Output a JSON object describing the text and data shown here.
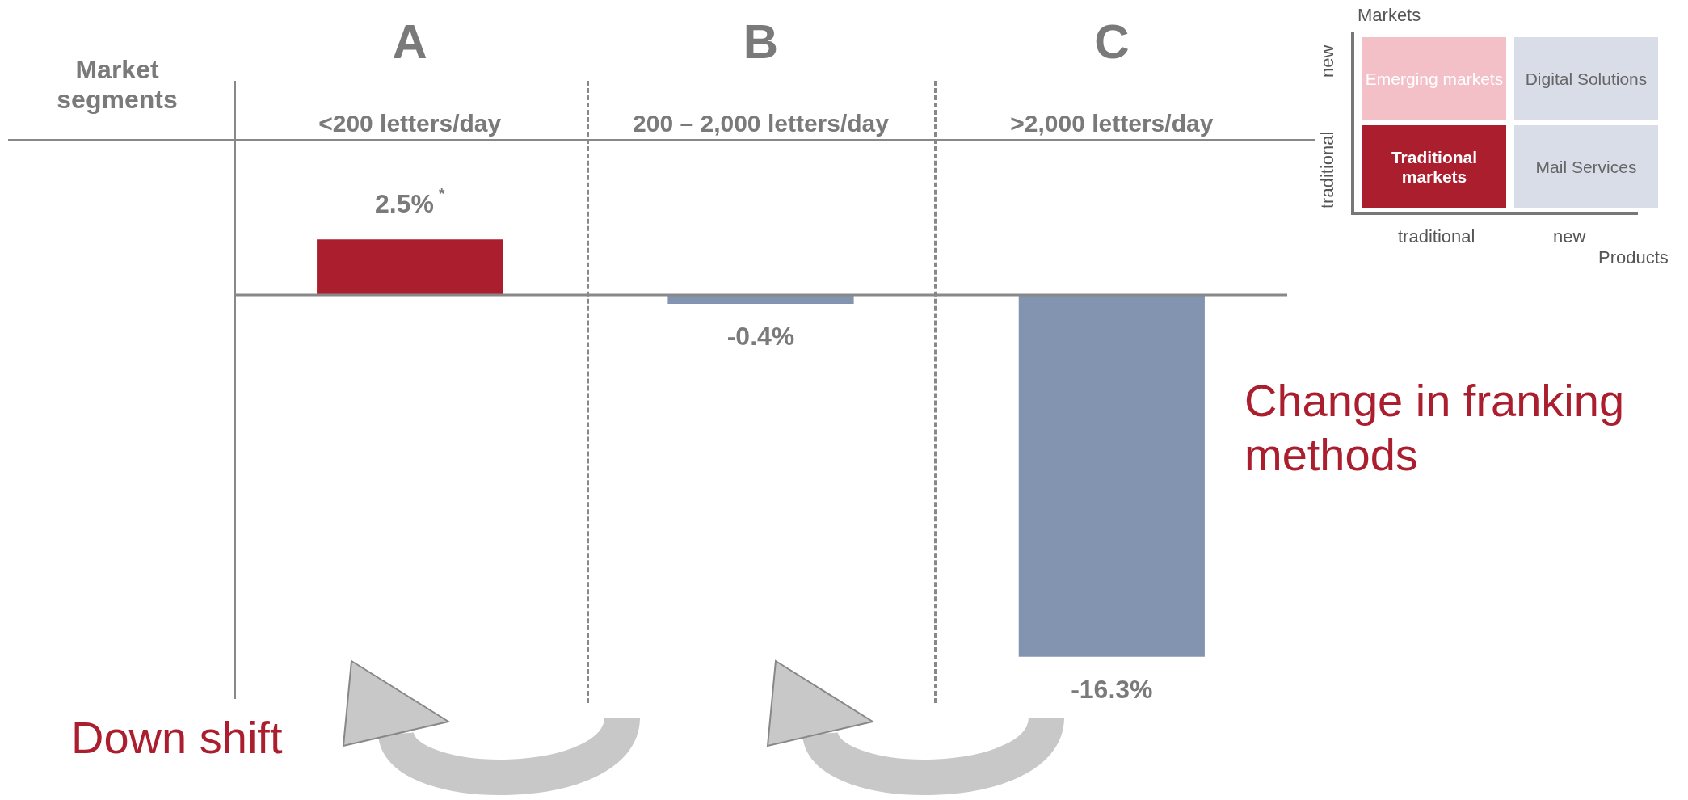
{
  "chart_data": {
    "type": "bar",
    "categories": [
      "<200 letters/day",
      "200 – 2,000 letters/day",
      ">2,000 letters/day"
    ],
    "values": [
      2.5,
      -0.4,
      -16.3
    ],
    "colors": [
      "#ab1e2e",
      "#8394b0",
      "#8394b0"
    ],
    "value_labels": [
      "2.5%$^{*}$",
      "-0.4%",
      "-16.3%"
    ],
    "legend": false,
    "grid": false,
    "annotations": [
      "A",
      "B",
      "C",
      "Market segments",
      "Change in franking methods",
      "Down shift",
      "Markets",
      "new",
      "traditional",
      "Emerging markets",
      "Digital Solutions",
      "Traditional markets",
      "Mail Services",
      "traditional",
      "new",
      "Products"
    ]
  }
}
